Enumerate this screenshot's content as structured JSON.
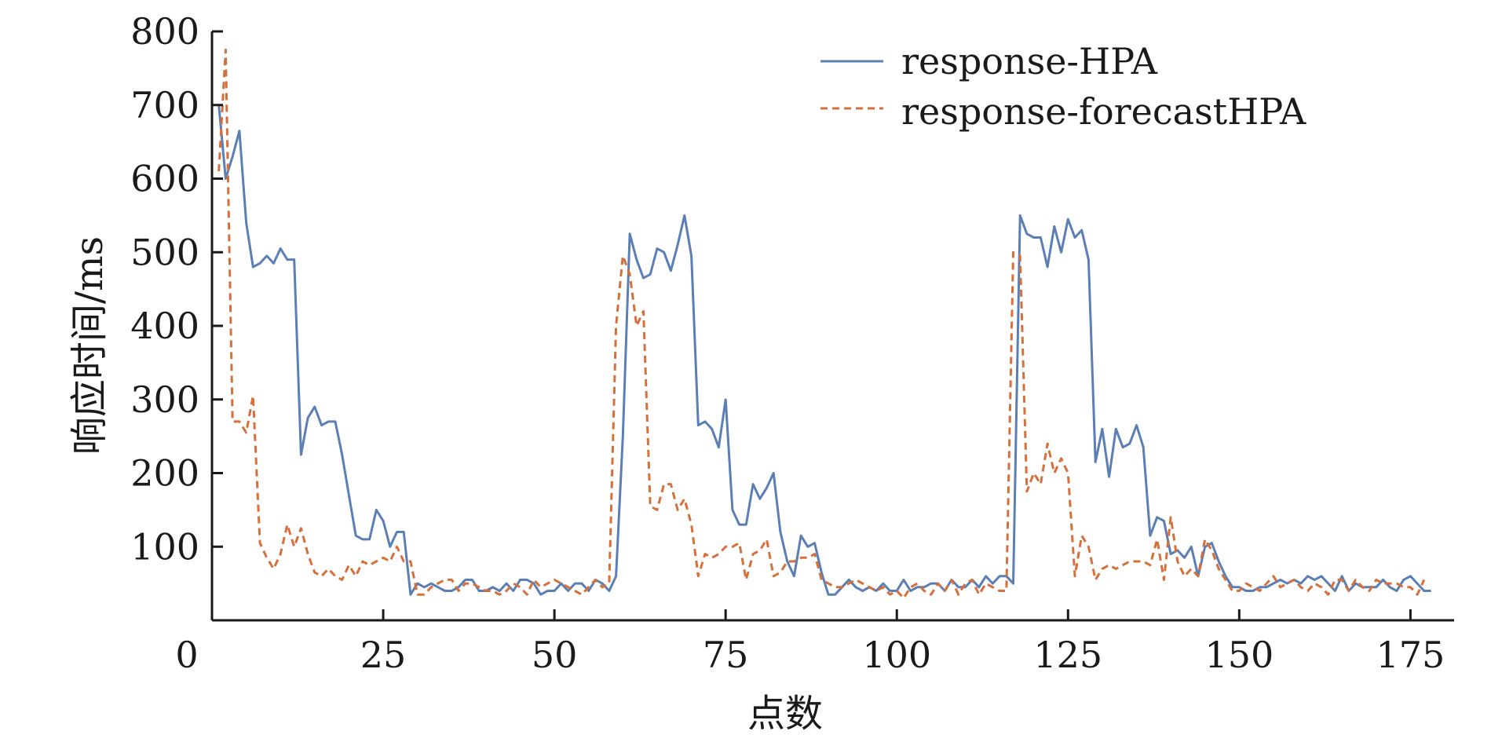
{
  "chart_data": {
    "type": "line",
    "title": "",
    "xlabel": "点数",
    "ylabel": "响应时间/ms",
    "xlim": [
      0,
      180
    ],
    "ylim": [
      0,
      800
    ],
    "xticks": [
      0,
      25,
      50,
      75,
      100,
      125,
      150,
      175
    ],
    "yticks": [
      100,
      200,
      300,
      400,
      500,
      600,
      700,
      800
    ],
    "grid": false,
    "legend_position": "top-right",
    "series": [
      {
        "name": "response-HPA",
        "color": "#5b7fb5",
        "dash": "solid",
        "values": [
          700,
          600,
          630,
          665,
          540,
          480,
          485,
          495,
          485,
          505,
          490,
          490,
          225,
          275,
          290,
          265,
          270,
          270,
          225,
          170,
          115,
          110,
          110,
          150,
          135,
          100,
          120,
          120,
          35,
          50,
          45,
          50,
          45,
          40,
          40,
          45,
          55,
          55,
          40,
          40,
          45,
          40,
          50,
          40,
          55,
          55,
          50,
          35,
          40,
          40,
          50,
          40,
          50,
          50,
          40,
          55,
          50,
          40,
          60,
          250,
          525,
          490,
          465,
          470,
          505,
          500,
          475,
          510,
          550,
          495,
          265,
          270,
          260,
          235,
          300,
          150,
          130,
          130,
          185,
          165,
          180,
          200,
          120,
          80,
          60,
          115,
          100,
          105,
          65,
          35,
          35,
          45,
          55,
          45,
          40,
          45,
          40,
          50,
          40,
          40,
          55,
          40,
          45,
          45,
          50,
          50,
          40,
          55,
          45,
          45,
          55,
          45,
          60,
          50,
          60,
          60,
          50,
          550,
          525,
          520,
          520,
          480,
          535,
          500,
          545,
          520,
          530,
          490,
          215,
          260,
          195,
          260,
          235,
          240,
          265,
          235,
          115,
          140,
          135,
          90,
          95,
          85,
          100,
          60,
          100,
          105,
          80,
          60,
          45,
          45,
          40,
          40,
          45,
          45,
          50,
          55,
          50,
          55,
          50,
          60,
          55,
          60,
          50,
          40,
          60,
          40,
          50,
          45,
          45,
          45,
          55,
          45,
          40,
          55,
          60,
          50,
          40,
          40
        ]
      },
      {
        "name": "response-forecastHPA",
        "color": "#d4703c",
        "dash": "dashed",
        "values": [
          610,
          775,
          270,
          270,
          255,
          305,
          105,
          85,
          70,
          90,
          130,
          100,
          125,
          90,
          65,
          60,
          70,
          60,
          55,
          75,
          60,
          80,
          75,
          80,
          85,
          80,
          100,
          80,
          80,
          35,
          35,
          45,
          50,
          55,
          55,
          40,
          50,
          50,
          45,
          40,
          40,
          35,
          40,
          50,
          45,
          35,
          55,
          45,
          50,
          55,
          50,
          45,
          40,
          35,
          45,
          55,
          45,
          50,
          400,
          495,
          470,
          400,
          420,
          155,
          150,
          185,
          185,
          150,
          165,
          130,
          60,
          90,
          85,
          90,
          100,
          100,
          105,
          55,
          90,
          95,
          110,
          60,
          65,
          80,
          80,
          85,
          85,
          90,
          55,
          50,
          45,
          45,
          50,
          55,
          50,
          45,
          40,
          45,
          35,
          40,
          30,
          45,
          50,
          40,
          35,
          50,
          40,
          55,
          35,
          50,
          55,
          35,
          50,
          45,
          40,
          40,
          500,
          495,
          175,
          200,
          185,
          240,
          200,
          220,
          200,
          60,
          115,
          100,
          55,
          70,
          75,
          70,
          75,
          80,
          80,
          80,
          75,
          110,
          55,
          140,
          80,
          60,
          70,
          60,
          110,
          95,
          70,
          55,
          40,
          40,
          50,
          45,
          40,
          50,
          60,
          45,
          50,
          55,
          45,
          40,
          50,
          45,
          35,
          55,
          55,
          40,
          55,
          45,
          40,
          55,
          50,
          50,
          50,
          45,
          45,
          35,
          55
        ]
      }
    ]
  }
}
